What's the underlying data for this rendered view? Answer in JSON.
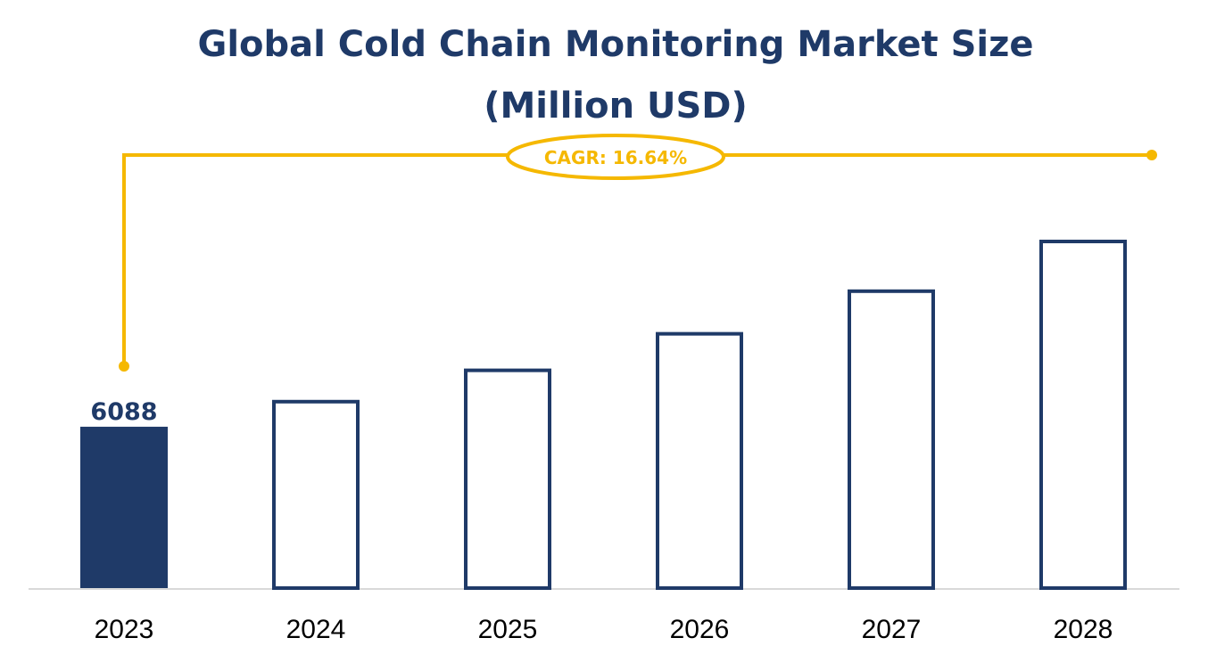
{
  "chart_data": {
    "type": "bar",
    "title_line1": "Global Cold Chain Monitoring Market Size",
    "title_line2": "(Million USD)",
    "annotation": "CAGR: 16.64%",
    "categories": [
      "2023",
      "2024",
      "2025",
      "2026",
      "2027",
      "2028"
    ],
    "values": [
      6088,
      7101,
      8283,
      9661,
      11269,
      13145
    ],
    "data_labels": [
      "6088",
      "",
      "",
      "",
      "",
      ""
    ],
    "xlabel": "",
    "ylabel": "",
    "ylim": [
      0,
      13145
    ],
    "grid": false
  },
  "colors": {
    "title": "#1f3a68",
    "bar_fill": "#1f3a68",
    "bar_stroke": "#1f3a68",
    "outline_fill": "#ffffff",
    "accent": "#f5b800",
    "axis": "#d9d9d9",
    "tick": "#000000"
  }
}
